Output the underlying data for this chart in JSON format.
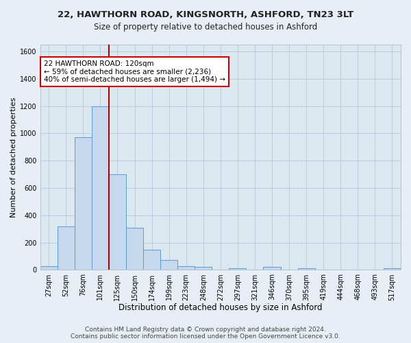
{
  "title": "22, HAWTHORN ROAD, KINGSNORTH, ASHFORD, TN23 3LT",
  "subtitle": "Size of property relative to detached houses in Ashford",
  "xlabel": "Distribution of detached houses by size in Ashford",
  "ylabel": "Number of detached properties",
  "bar_labels": [
    "27sqm",
    "52sqm",
    "76sqm",
    "101sqm",
    "125sqm",
    "150sqm",
    "174sqm",
    "199sqm",
    "223sqm",
    "248sqm",
    "272sqm",
    "297sqm",
    "321sqm",
    "346sqm",
    "370sqm",
    "395sqm",
    "419sqm",
    "444sqm",
    "468sqm",
    "493sqm",
    "517sqm"
  ],
  "bar_values": [
    25,
    320,
    970,
    1200,
    700,
    310,
    150,
    75,
    25,
    20,
    0,
    10,
    0,
    20,
    0,
    10,
    0,
    0,
    0,
    0,
    10
  ],
  "bar_color": "#c5d8ed",
  "bar_edge_color": "#5b9bd5",
  "vline_color": "#aa0000",
  "annotation_line1": "22 HAWTHORN ROAD: 120sqm",
  "annotation_line2": "← 59% of detached houses are smaller (2,236)",
  "annotation_line3": "40% of semi-detached houses are larger (1,494) →",
  "annotation_box_edge_color": "#cc0000",
  "annotation_fontsize": 7.5,
  "ylim": [
    0,
    1650
  ],
  "yticks": [
    0,
    200,
    400,
    600,
    800,
    1000,
    1200,
    1400,
    1600
  ],
  "bg_color": "#e8eef5",
  "plot_bg_color": "#dce8f0",
  "footer_text": "Contains HM Land Registry data © Crown copyright and database right 2024.\nContains public sector information licensed under the Open Government Licence v3.0.",
  "title_fontsize": 9.5,
  "xlabel_fontsize": 8.5,
  "ylabel_fontsize": 8,
  "tick_fontsize": 7,
  "footer_fontsize": 6.5
}
